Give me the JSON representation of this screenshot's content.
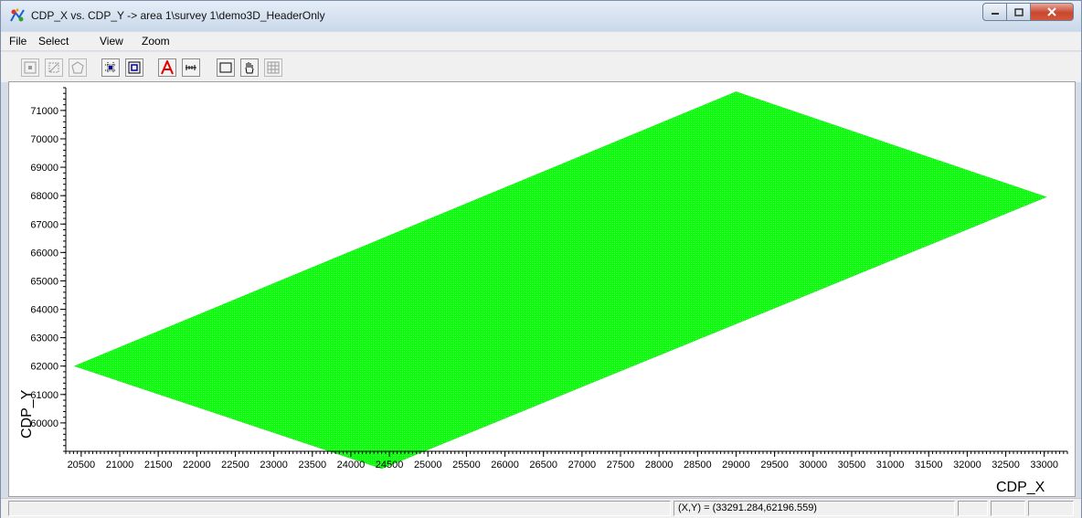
{
  "window": {
    "title": "CDP_X vs. CDP_Y -> area 1\\survey 1\\demo3D_HeaderOnly"
  },
  "menu": [
    "File",
    "Select",
    "View",
    "Zoom"
  ],
  "toolbar": {
    "buttons": [
      {
        "name": "select-point-button",
        "icon": "select-point-icon",
        "enabled": false
      },
      {
        "name": "select-area-button",
        "icon": "select-area-icon",
        "enabled": false
      },
      {
        "name": "select-polygon-button",
        "icon": "polygon-icon",
        "enabled": false
      },
      {
        "name": "zoom-grid-button",
        "icon": "zoom-grid-icon",
        "enabled": true
      },
      {
        "name": "zoom-fit-button",
        "icon": "zoom-fit-icon",
        "enabled": true
      },
      {
        "name": "annotate-button",
        "icon": "letter-a-icon",
        "enabled": true,
        "color": "#e00000"
      },
      {
        "name": "ruler-button",
        "icon": "ruler-icon",
        "enabled": true
      },
      {
        "name": "rectangle-button",
        "icon": "rectangle-icon",
        "enabled": true
      },
      {
        "name": "pan-button",
        "icon": "hand-icon",
        "enabled": true
      },
      {
        "name": "grid-button",
        "icon": "grid-icon",
        "enabled": false
      }
    ]
  },
  "chart_data": {
    "type": "scatter",
    "description_fill_color": "#00ff00",
    "xlabel": "CDP_X",
    "ylabel": "CDP_Y",
    "xlim": [
      20300,
      33300
    ],
    "ylim": [
      59000,
      71800
    ],
    "xticks": [
      20500,
      21000,
      21500,
      22000,
      22500,
      23000,
      23500,
      24000,
      24500,
      25000,
      25500,
      26000,
      26500,
      27000,
      27500,
      28000,
      28500,
      29000,
      29500,
      30000,
      30500,
      31000,
      31500,
      32000,
      32500,
      33000
    ],
    "yticks": [
      60000,
      61000,
      62000,
      63000,
      64000,
      65000,
      66000,
      67000,
      68000,
      69000,
      70000,
      71000
    ],
    "ytick_labels": [
      "60000",
      "61000",
      "62000",
      "63000",
      "64000",
      "65000",
      "66000",
      "67000",
      "68000",
      "69000",
      "70000",
      "71000"
    ],
    "survey_outline": [
      [
        20420,
        62000
      ],
      [
        29000,
        71650
      ],
      [
        33020,
        67950
      ],
      [
        24400,
        58400
      ]
    ],
    "grid": false
  },
  "status": {
    "coordinates": "(X,Y) = (33291.284,62196.559)"
  }
}
